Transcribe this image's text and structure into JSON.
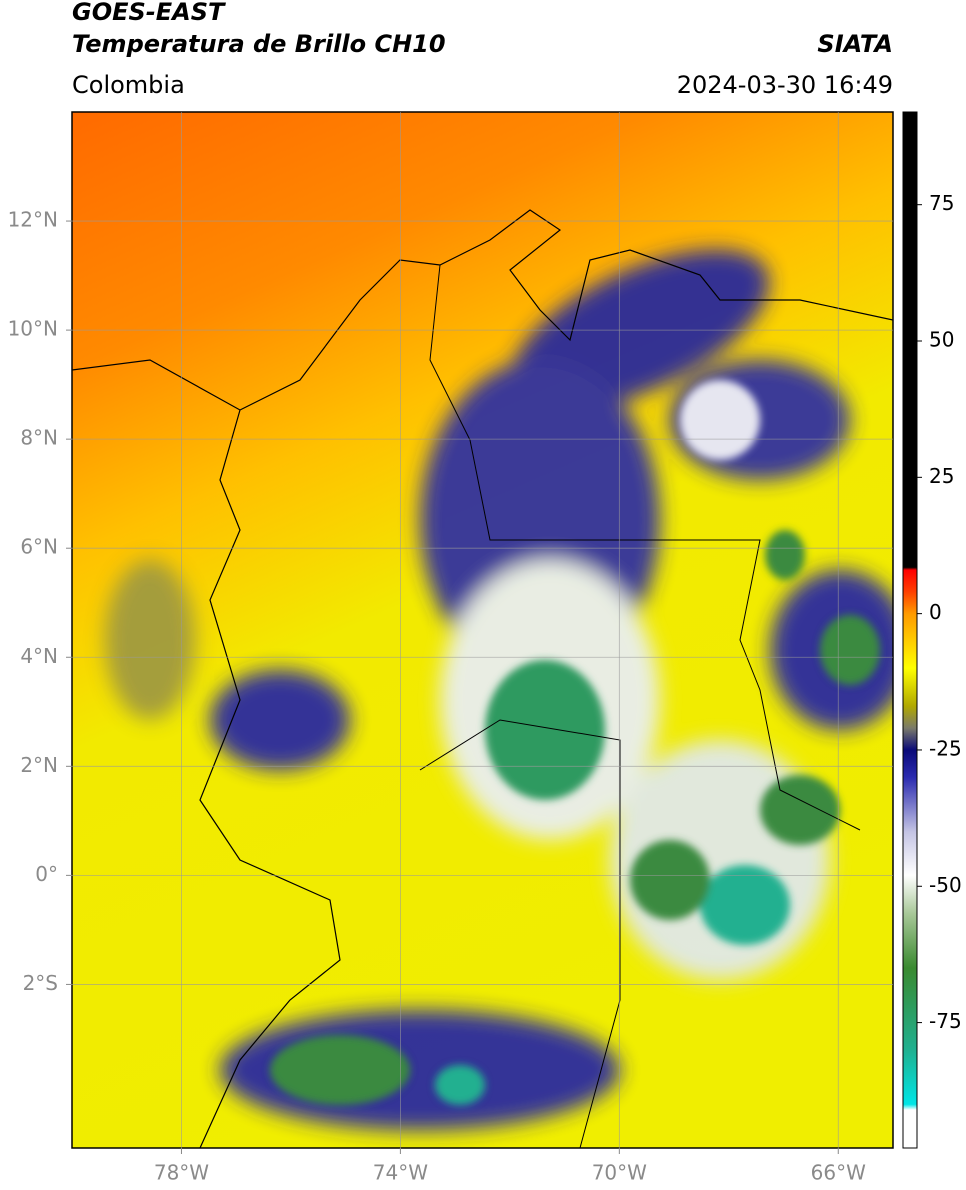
{
  "header": {
    "title": "GOES-EAST",
    "subtitle": "Temperatura de Brillo CH10",
    "source": "SIATA",
    "region": "Colombia",
    "datetime": "2024-03-30 16:49"
  },
  "chart_data": {
    "type": "map",
    "xlim": [
      -80,
      -65
    ],
    "ylim": [
      -5,
      14
    ],
    "xticks": [
      {
        "value": -78,
        "label": "78°W"
      },
      {
        "value": -74,
        "label": "74°W"
      },
      {
        "value": -70,
        "label": "70°W"
      },
      {
        "value": -66,
        "label": "66°W"
      }
    ],
    "yticks": [
      {
        "value": -2,
        "label": "2°S"
      },
      {
        "value": 0,
        "label": "0°"
      },
      {
        "value": 2,
        "label": "2°N"
      },
      {
        "value": 4,
        "label": "4°N"
      },
      {
        "value": 6,
        "label": "6°N"
      },
      {
        "value": 8,
        "label": "8°N"
      },
      {
        "value": 10,
        "label": "10°N"
      },
      {
        "value": 12,
        "label": "12°N"
      }
    ],
    "grid": true,
    "colorbar": {
      "lim": [
        -98,
        92
      ],
      "ticks": [
        75,
        50,
        25,
        0,
        -25,
        -50,
        -75
      ],
      "colormap": [
        {
          "value": 92,
          "color": "#000000"
        },
        {
          "value": 8.5,
          "color": "#000000"
        },
        {
          "value": 8,
          "color": "#ff0000"
        },
        {
          "value": 4,
          "color": "#ff4000"
        },
        {
          "value": 0,
          "color": "#ff9a00"
        },
        {
          "value": -10,
          "color": "#ffff00"
        },
        {
          "value": -17,
          "color": "#b0a800"
        },
        {
          "value": -21,
          "color": "#7a7a6a"
        },
        {
          "value": -25,
          "color": "#0a0a78"
        },
        {
          "value": -30,
          "color": "#2a2ab0"
        },
        {
          "value": -40,
          "color": "#c4c4e4"
        },
        {
          "value": -48,
          "color": "#ffffff"
        },
        {
          "value": -55,
          "color": "#a8c898"
        },
        {
          "value": -65,
          "color": "#3a8a30"
        },
        {
          "value": -80,
          "color": "#20b090"
        },
        {
          "value": -90,
          "color": "#00e6e6"
        },
        {
          "value": -91,
          "color": "#ffffff"
        },
        {
          "value": -98,
          "color": "#ffffff"
        }
      ]
    }
  }
}
